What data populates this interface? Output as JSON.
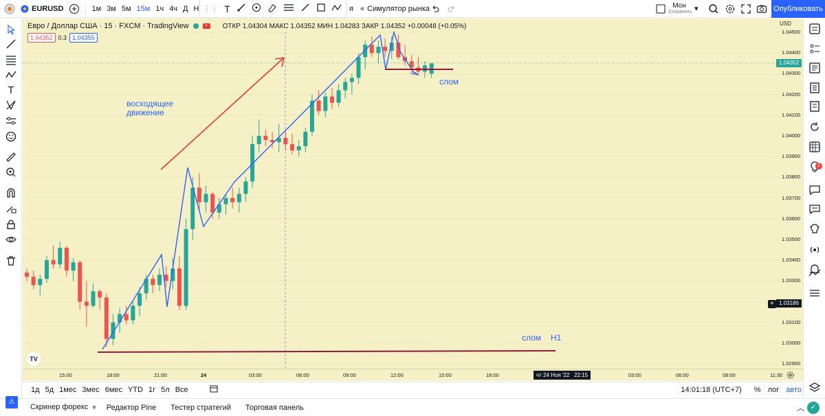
{
  "topbar": {
    "symbol": "EURUSD",
    "intervals": [
      "1м",
      "3м",
      "5м",
      "15м",
      "1ч",
      "4ч",
      "Д",
      "Н"
    ],
    "active_interval": "15м",
    "replay_fragment": "я",
    "market_sim_label": "Симулятор рынка",
    "layout_name": "Мон",
    "layout_sub": "Сохранить",
    "publish_label": "Опубликовать",
    "accent_color": "#2962ff"
  },
  "legend": {
    "title": "Евро / Доллар США · 15 · FXCM · TradingView",
    "ohlc": "ОТКР 1.04304 МАКС 1.04352 МИН 1.04283 ЗАКР 1.04352 +0.00048 (+0.05%)",
    "sell_price": "1.04352",
    "spread": "0.3",
    "buy_price": "1.04355"
  },
  "price_scale": {
    "currency": "USD",
    "ticks": [
      "1.04500",
      "1.04400",
      "1.04300",
      "1.04200",
      "1.04100",
      "1.04000",
      "1.03900",
      "1.03800",
      "1.03700",
      "1.03600",
      "1.03500",
      "1.03400",
      "1.03300",
      "1.03200",
      "1.03100",
      "1.03000",
      "1.02900"
    ],
    "current_price": "1.04352",
    "crosshair_price": "1.03186"
  },
  "time_scale": {
    "ticks": [
      "15:00",
      "18:00",
      "21:00",
      "24",
      "03:00",
      "06:00",
      "09:00",
      "12:00",
      "15:00",
      "18:00",
      "21:00",
      "25",
      "03:00",
      "06:00",
      "09:00",
      "11:30"
    ],
    "crosshair_label": "чт 24 Ноя '22   22:15"
  },
  "annotations": {
    "uptrend_line1": "восходящее",
    "uptrend_line2": "движение",
    "break_top": "слом",
    "break_bottom": "слом",
    "timeframe": "H1"
  },
  "bottom_bar": {
    "ranges": [
      "1д",
      "5д",
      "1мес",
      "3мес",
      "6мес",
      "YTD",
      "1г",
      "5л",
      "Все"
    ],
    "clock": "14:01:18 (UTC+7)",
    "percent": "%",
    "log": "лог",
    "auto": "авто"
  },
  "panels": {
    "tabs": [
      "Скринер форекс",
      "Редактор Pine",
      "Тестер стратегий",
      "Торговая панель"
    ]
  },
  "notifications_count": "2",
  "colors": {
    "chart_bg": "#f6f0c6",
    "up": "#26a69a",
    "down": "#ef5350",
    "blue_line": "#2962ff",
    "red_arrow": "#e53935",
    "support": "#8e1b3a"
  },
  "chart_data": {
    "type": "candlestick",
    "symbol": "EURUSD",
    "interval": "15",
    "ylim": [
      1.0285,
      1.0455
    ],
    "candles": [
      [
        1.0334,
        1.0336,
        1.033,
        1.0332
      ],
      [
        1.0332,
        1.0335,
        1.0326,
        1.0328
      ],
      [
        1.0328,
        1.0333,
        1.0323,
        1.0331
      ],
      [
        1.0331,
        1.0342,
        1.0329,
        1.034
      ],
      [
        1.034,
        1.0347,
        1.0336,
        1.0338
      ],
      [
        1.0338,
        1.0349,
        1.0336,
        1.0346
      ],
      [
        1.0346,
        1.0347,
        1.0332,
        1.0335
      ],
      [
        1.0335,
        1.0341,
        1.033,
        1.0339
      ],
      [
        1.0339,
        1.034,
        1.0316,
        1.032
      ],
      [
        1.032,
        1.033,
        1.0308,
        1.0318
      ],
      [
        1.0318,
        1.0329,
        1.0317,
        1.0325
      ],
      [
        1.0325,
        1.0326,
        1.0316,
        1.0322
      ],
      [
        1.0322,
        1.0324,
        1.0298,
        1.0302
      ],
      [
        1.0302,
        1.0314,
        1.0299,
        1.031
      ],
      [
        1.031,
        1.0317,
        1.0305,
        1.0314
      ],
      [
        1.0314,
        1.0318,
        1.0309,
        1.0311
      ],
      [
        1.0311,
        1.032,
        1.0309,
        1.0318
      ],
      [
        1.0318,
        1.0327,
        1.0313,
        1.0324
      ],
      [
        1.0324,
        1.0333,
        1.0321,
        1.0331
      ],
      [
        1.0331,
        1.0333,
        1.0324,
        1.0328
      ],
      [
        1.0328,
        1.0336,
        1.0325,
        1.0333
      ],
      [
        1.0333,
        1.0337,
        1.0327,
        1.033
      ],
      [
        1.033,
        1.0341,
        1.0326,
        1.0336
      ],
      [
        1.0336,
        1.0342,
        1.0316,
        1.0318
      ],
      [
        1.0318,
        1.036,
        1.0316,
        1.0355
      ],
      [
        1.0355,
        1.038,
        1.035,
        1.0375
      ],
      [
        1.0375,
        1.0382,
        1.0363,
        1.0368
      ],
      [
        1.0368,
        1.0376,
        1.0363,
        1.0372
      ],
      [
        1.0372,
        1.0373,
        1.036,
        1.0363
      ],
      [
        1.0363,
        1.037,
        1.036,
        1.0367
      ],
      [
        1.0367,
        1.0372,
        1.0362,
        1.037
      ],
      [
        1.037,
        1.0375,
        1.0365,
        1.0368
      ],
      [
        1.0368,
        1.0375,
        1.0363,
        1.0372
      ],
      [
        1.0372,
        1.038,
        1.0368,
        1.0378
      ],
      [
        1.0378,
        1.04,
        1.0375,
        1.0396
      ],
      [
        1.0396,
        1.0408,
        1.0392,
        1.04
      ],
      [
        1.04,
        1.0403,
        1.0395,
        1.0398
      ],
      [
        1.0398,
        1.0402,
        1.0394,
        1.0397
      ],
      [
        1.0397,
        1.0406,
        1.0392,
        1.0399
      ],
      [
        1.0399,
        1.0402,
        1.0393,
        1.0396
      ],
      [
        1.0396,
        1.0401,
        1.0391,
        1.0393
      ],
      [
        1.0393,
        1.0398,
        1.039,
        1.0395
      ],
      [
        1.0395,
        1.0404,
        1.0392,
        1.0402
      ],
      [
        1.0402,
        1.042,
        1.04,
        1.0417
      ],
      [
        1.0417,
        1.0422,
        1.041,
        1.0412
      ],
      [
        1.0412,
        1.0421,
        1.0409,
        1.0419
      ],
      [
        1.0419,
        1.0423,
        1.0413,
        1.0416
      ],
      [
        1.0416,
        1.0425,
        1.0414,
        1.0422
      ],
      [
        1.0422,
        1.0428,
        1.0418,
        1.0426
      ],
      [
        1.0426,
        1.043,
        1.042,
        1.0428
      ],
      [
        1.0428,
        1.044,
        1.0425,
        1.0438
      ],
      [
        1.0438,
        1.0446,
        1.0432,
        1.0444
      ],
      [
        1.0444,
        1.0448,
        1.0438,
        1.044
      ],
      [
        1.044,
        1.0446,
        1.0435,
        1.0443
      ],
      [
        1.0443,
        1.0447,
        1.0438,
        1.0441
      ],
      [
        1.0441,
        1.0448,
        1.0437,
        1.0445
      ],
      [
        1.0445,
        1.0449,
        1.0437,
        1.0438
      ],
      [
        1.0438,
        1.0444,
        1.0434,
        1.0436
      ],
      [
        1.0436,
        1.0439,
        1.043,
        1.0433
      ],
      [
        1.0433,
        1.0438,
        1.0429,
        1.0431
      ],
      [
        1.0431,
        1.0436,
        1.0428,
        1.0434
      ],
      [
        1.043,
        1.0435,
        1.0428,
        1.0435
      ]
    ]
  }
}
